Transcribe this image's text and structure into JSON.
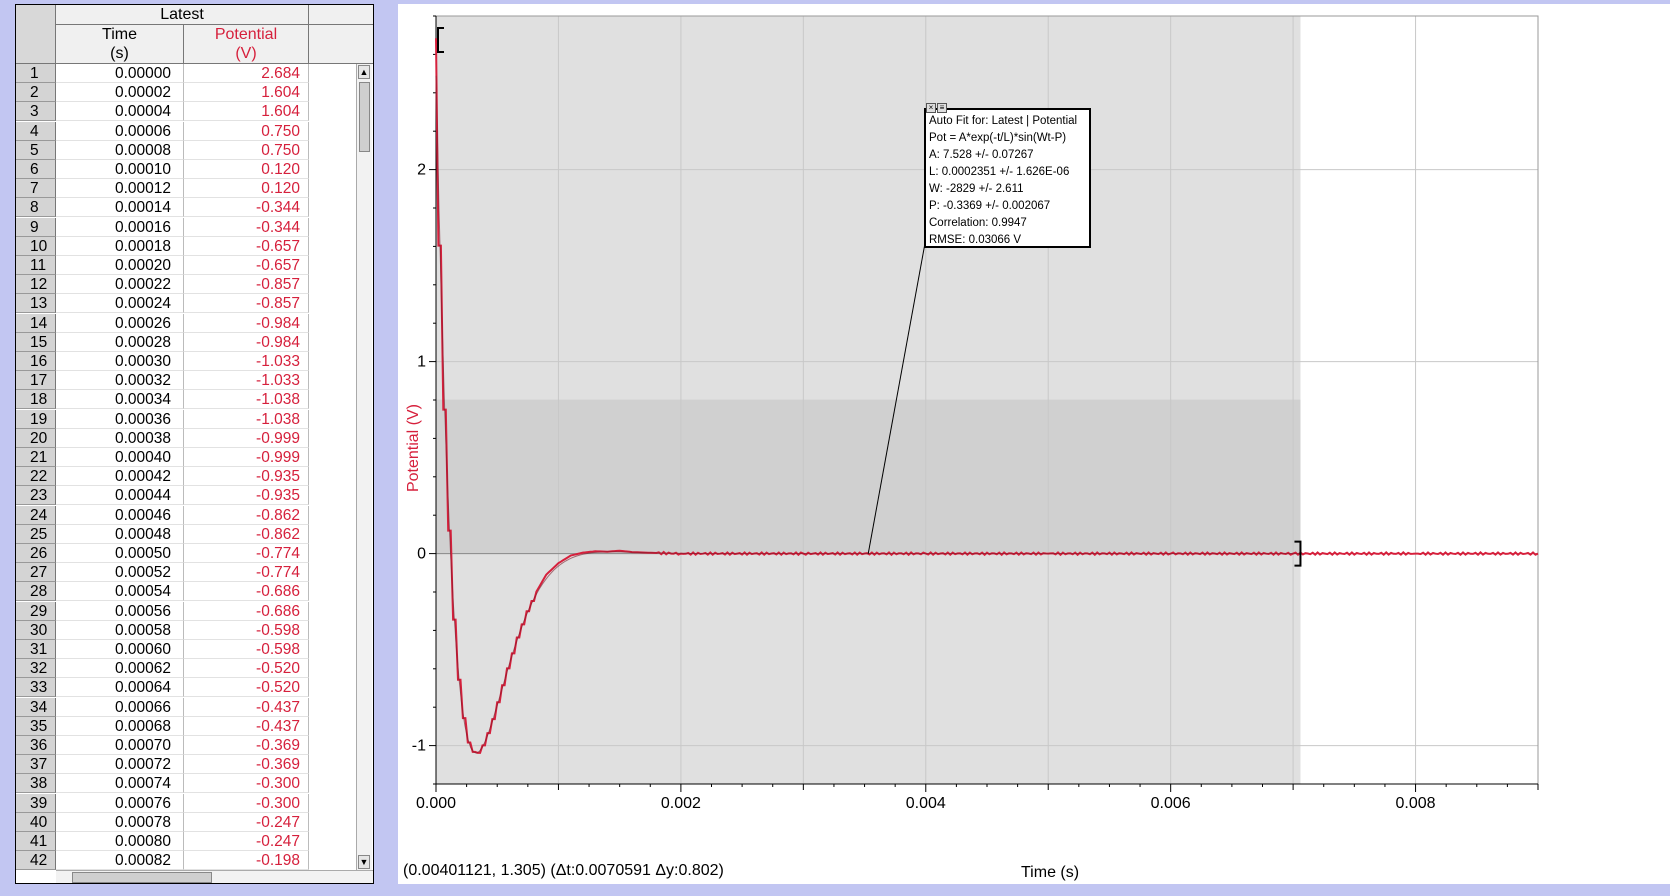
{
  "table": {
    "data_set": "Latest",
    "columns": [
      {
        "name": "Time",
        "unit": "(s)"
      },
      {
        "name": "Potential",
        "unit": "(V)"
      }
    ],
    "rows": [
      {
        "n": "1",
        "t": "0.00000",
        "v": "2.684"
      },
      {
        "n": "2",
        "t": "0.00002",
        "v": "1.604"
      },
      {
        "n": "3",
        "t": "0.00004",
        "v": "1.604"
      },
      {
        "n": "4",
        "t": "0.00006",
        "v": "0.750"
      },
      {
        "n": "5",
        "t": "0.00008",
        "v": "0.750"
      },
      {
        "n": "6",
        "t": "0.00010",
        "v": "0.120"
      },
      {
        "n": "7",
        "t": "0.00012",
        "v": "0.120"
      },
      {
        "n": "8",
        "t": "0.00014",
        "v": "-0.344"
      },
      {
        "n": "9",
        "t": "0.00016",
        "v": "-0.344"
      },
      {
        "n": "10",
        "t": "0.00018",
        "v": "-0.657"
      },
      {
        "n": "11",
        "t": "0.00020",
        "v": "-0.657"
      },
      {
        "n": "12",
        "t": "0.00022",
        "v": "-0.857"
      },
      {
        "n": "13",
        "t": "0.00024",
        "v": "-0.857"
      },
      {
        "n": "14",
        "t": "0.00026",
        "v": "-0.984"
      },
      {
        "n": "15",
        "t": "0.00028",
        "v": "-0.984"
      },
      {
        "n": "16",
        "t": "0.00030",
        "v": "-1.033"
      },
      {
        "n": "17",
        "t": "0.00032",
        "v": "-1.033"
      },
      {
        "n": "18",
        "t": "0.00034",
        "v": "-1.038"
      },
      {
        "n": "19",
        "t": "0.00036",
        "v": "-1.038"
      },
      {
        "n": "20",
        "t": "0.00038",
        "v": "-0.999"
      },
      {
        "n": "21",
        "t": "0.00040",
        "v": "-0.999"
      },
      {
        "n": "22",
        "t": "0.00042",
        "v": "-0.935"
      },
      {
        "n": "23",
        "t": "0.00044",
        "v": "-0.935"
      },
      {
        "n": "24",
        "t": "0.00046",
        "v": "-0.862"
      },
      {
        "n": "25",
        "t": "0.00048",
        "v": "-0.862"
      },
      {
        "n": "26",
        "t": "0.00050",
        "v": "-0.774"
      },
      {
        "n": "27",
        "t": "0.00052",
        "v": "-0.774"
      },
      {
        "n": "28",
        "t": "0.00054",
        "v": "-0.686"
      },
      {
        "n": "29",
        "t": "0.00056",
        "v": "-0.686"
      },
      {
        "n": "30",
        "t": "0.00058",
        "v": "-0.598"
      },
      {
        "n": "31",
        "t": "0.00060",
        "v": "-0.598"
      },
      {
        "n": "32",
        "t": "0.00062",
        "v": "-0.520"
      },
      {
        "n": "33",
        "t": "0.00064",
        "v": "-0.520"
      },
      {
        "n": "34",
        "t": "0.00066",
        "v": "-0.437"
      },
      {
        "n": "35",
        "t": "0.00068",
        "v": "-0.437"
      },
      {
        "n": "36",
        "t": "0.00070",
        "v": "-0.369"
      },
      {
        "n": "37",
        "t": "0.00072",
        "v": "-0.369"
      },
      {
        "n": "38",
        "t": "0.00074",
        "v": "-0.300"
      },
      {
        "n": "39",
        "t": "0.00076",
        "v": "-0.300"
      },
      {
        "n": "40",
        "t": "0.00078",
        "v": "-0.247"
      },
      {
        "n": "41",
        "t": "0.00080",
        "v": "-0.247"
      },
      {
        "n": "42",
        "t": "0.00082",
        "v": "-0.198"
      }
    ]
  },
  "graph": {
    "x_label": "Time (s)",
    "y_label": "Potential (V)",
    "status_readout": "(0.00401121, 1.305) (Δt:0.0070591 Δy:0.802)",
    "fit_box": {
      "lines": [
        "Auto Fit for: Latest | Potential",
        "Pot = A*exp(-t/L)*sin(Wt-P)",
        "A: 7.528 +/- 0.07267",
        "L: 0.0002351 +/- 1.626E-06",
        "W: -2829 +/- 2.611",
        "P: -0.3369 +/- 0.002067",
        "Correlation: 0.9947",
        "RMSE: 0.03066 V"
      ]
    }
  },
  "chart_data": {
    "type": "line",
    "xlabel": "Time (s)",
    "ylabel": "Potential (V)",
    "xlim": [
      0,
      0.009
    ],
    "ylim": [
      -1.2,
      2.8
    ],
    "x_ticks": [
      "0.000",
      "0.002",
      "0.004",
      "0.006",
      "0.008"
    ],
    "y_ticks": [
      "-1",
      "0",
      "1",
      "2"
    ],
    "grid": true,
    "selection_range_x": [
      0,
      0.00706
    ],
    "examined_range_y": [
      0,
      0.802
    ],
    "fit": {
      "A": 7.528,
      "L": 0.0002351,
      "W": -2829,
      "P": -0.3369
    },
    "series": [
      {
        "color": "#d6203c",
        "x": [
          0,
          2e-05,
          4e-05,
          6e-05,
          8e-05,
          0.0001,
          0.00012,
          0.00014,
          0.00016,
          0.00018,
          0.0002,
          0.00022,
          0.00024,
          0.00026,
          0.00028,
          0.0003,
          0.00032,
          0.00034,
          0.00036,
          0.00038,
          0.0004,
          0.00042,
          0.00044,
          0.00046,
          0.00048,
          0.0005,
          0.00052,
          0.00054,
          0.00056,
          0.00058,
          0.0006,
          0.00062,
          0.00064,
          0.00066,
          0.00068,
          0.0007,
          0.00072,
          0.00074,
          0.00076,
          0.00078,
          0.0008,
          0.00082,
          0.0009,
          0.001,
          0.0011,
          0.0012,
          0.0013,
          0.0014,
          0.0015,
          0.0016,
          0.0018,
          0.002,
          0.003,
          0.004,
          0.005,
          0.006,
          0.007,
          0.008,
          0.009
        ],
        "y": [
          2.684,
          1.604,
          1.604,
          0.75,
          0.75,
          0.12,
          0.12,
          -0.344,
          -0.344,
          -0.657,
          -0.657,
          -0.857,
          -0.857,
          -0.984,
          -0.984,
          -1.033,
          -1.033,
          -1.038,
          -1.038,
          -0.999,
          -0.999,
          -0.935,
          -0.935,
          -0.862,
          -0.862,
          -0.774,
          -0.774,
          -0.686,
          -0.686,
          -0.598,
          -0.598,
          -0.52,
          -0.52,
          -0.437,
          -0.437,
          -0.369,
          -0.369,
          -0.3,
          -0.3,
          -0.247,
          -0.247,
          -0.198,
          -0.11,
          -0.05,
          -0.01,
          0.005,
          0.012,
          0.01,
          0.015,
          0.008,
          0.003,
          0,
          0,
          0,
          0,
          0,
          0,
          0,
          0
        ]
      }
    ]
  }
}
